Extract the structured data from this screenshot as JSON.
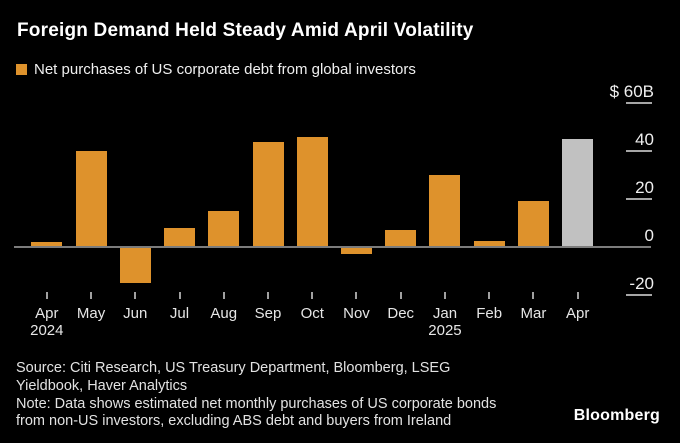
{
  "title": "Foreign Demand Held Steady Amid April Volatility",
  "legend": {
    "label": "Net purchases of US corporate debt from global investors",
    "swatch_color": "#DE922C"
  },
  "chart_data": {
    "type": "bar",
    "title": "Foreign Demand Held Steady Amid April Volatility",
    "series_name": "Net purchases of US corporate debt from global investors",
    "categories": [
      "Apr",
      "May",
      "Jun",
      "Jul",
      "Aug",
      "Sep",
      "Oct",
      "Nov",
      "Dec",
      "Jan",
      "Feb",
      "Mar",
      "Apr"
    ],
    "year_labels": [
      {
        "index": 0,
        "label": "2024"
      },
      {
        "index": 9,
        "label": "2025"
      }
    ],
    "values": [
      2,
      40,
      -15,
      8,
      15,
      44,
      46,
      -3,
      7,
      30,
      2.5,
      19,
      45
    ],
    "unit": "$B",
    "y_ticks": [
      {
        "value": 60,
        "label": "$ 60B"
      },
      {
        "value": 40,
        "label": "40"
      },
      {
        "value": 20,
        "label": "20"
      },
      {
        "value": 0,
        "label": "0"
      },
      {
        "value": -20,
        "label": "-20"
      }
    ],
    "ylim": [
      -25,
      62
    ],
    "grid": "off",
    "legend_position": "top-left",
    "bar_color": "#DE922C",
    "highlight_color": "#C1C1C1",
    "highlight_index": 12
  },
  "footer": {
    "lines": [
      "Source: Citi Research, US Treasury Department, Bloomberg, LSEG",
      "Yieldbook, Haver Analytics",
      "Note: Data shows estimated net monthly purchases of US corporate bonds",
      "from non-US investors, excluding ABS debt and buyers from Ireland"
    ]
  },
  "logo": "Bloomberg"
}
